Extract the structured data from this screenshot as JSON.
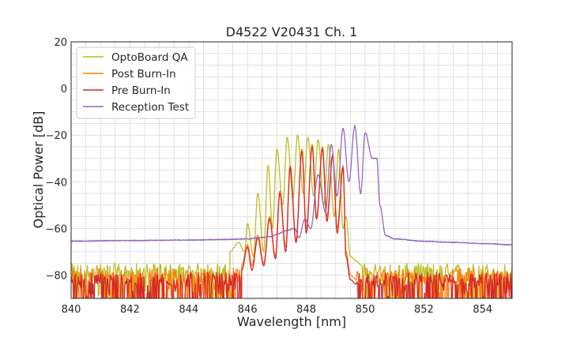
{
  "chart_data": {
    "type": "line",
    "title": "D4522 V20431 Ch. 1",
    "xlabel": "Wavelength [nm]",
    "ylabel": "Optical Power [dB]",
    "xlim": [
      840,
      855
    ],
    "ylim": [
      -90,
      20
    ],
    "xticks": [
      840,
      842,
      844,
      846,
      848,
      850,
      852,
      854
    ],
    "yticks": [
      20,
      0,
      -20,
      -40,
      -60,
      -80
    ],
    "ytick_labels": [
      "20",
      "0",
      "−20",
      "−40",
      "−60",
      "−80"
    ],
    "grid": true,
    "legend_position": "top-left",
    "series": [
      {
        "name": "OptoBoard QA",
        "color": "#bcbd22",
        "noise_floor": -78,
        "x": [
          845.4,
          845.7,
          845.9,
          846.0,
          846.2,
          846.35,
          846.55,
          846.7,
          846.85,
          847.0,
          847.2,
          847.35,
          847.55,
          847.7,
          847.9,
          848.05,
          848.25,
          848.4,
          848.6,
          848.75,
          848.95,
          849.1,
          849.25,
          849.35,
          849.5,
          849.7,
          849.9
        ],
        "values": [
          -70,
          -66,
          -70,
          -58,
          -72,
          -45,
          -70,
          -33,
          -60,
          -26,
          -50,
          -21,
          -47,
          -20,
          -45,
          -21,
          -46,
          -22,
          -50,
          -24,
          -55,
          -26,
          -60,
          -55,
          -72,
          -74,
          -76
        ]
      },
      {
        "name": "Post Burn-In",
        "color": "#ff7f0e",
        "noise_floor": -80,
        "x": [
          845.8,
          846.0,
          846.15,
          846.35,
          846.55,
          846.75,
          846.95,
          847.1,
          847.3,
          847.45,
          847.65,
          847.85,
          848.0,
          848.2,
          848.35,
          848.55,
          848.7,
          848.9,
          849.05,
          849.25,
          849.35,
          849.5,
          849.7
        ],
        "values": [
          -76,
          -67,
          -76,
          -63,
          -75,
          -55,
          -72,
          -44,
          -68,
          -33,
          -65,
          -26,
          -60,
          -24,
          -55,
          -25,
          -55,
          -28,
          -60,
          -33,
          -70,
          -80,
          -82
        ]
      },
      {
        "name": "Pre Burn-In",
        "color": "#d62728",
        "noise_floor": -82,
        "x": [
          845.8,
          846.0,
          846.15,
          846.35,
          846.55,
          846.75,
          846.95,
          847.1,
          847.3,
          847.45,
          847.65,
          847.85,
          848.0,
          848.2,
          848.35,
          848.55,
          848.7,
          848.9,
          849.05,
          849.25,
          849.35,
          849.5,
          849.7
        ],
        "values": [
          -78,
          -68,
          -78,
          -64,
          -76,
          -56,
          -73,
          -45,
          -70,
          -34,
          -66,
          -27,
          -62,
          -25,
          -56,
          -26,
          -57,
          -29,
          -62,
          -34,
          -72,
          -82,
          -84
        ]
      },
      {
        "name": "Reception Test",
        "color": "#9467bd",
        "x": [
          840.0,
          842.0,
          844.0,
          845.0,
          846.0,
          846.4,
          846.8,
          847.0,
          847.3,
          847.6,
          847.75,
          847.95,
          848.15,
          848.4,
          848.65,
          848.85,
          849.05,
          849.25,
          849.45,
          849.65,
          849.85,
          850.0,
          850.25,
          850.4,
          850.5,
          850.7,
          851.0,
          852.0,
          853.0,
          854.0,
          855.0
        ],
        "values": [
          -65.5,
          -65.2,
          -65.0,
          -64.8,
          -64.5,
          -64.0,
          -63.5,
          -62.5,
          -61.0,
          -60.0,
          -64.0,
          -56.0,
          -60.0,
          -37.0,
          -53.0,
          -24.0,
          -46.0,
          -17.0,
          -40.0,
          -16.0,
          -45.0,
          -19.0,
          -30.0,
          -30.0,
          -50.0,
          -63.0,
          -64.5,
          -65.5,
          -66.0,
          -66.5,
          -67.0
        ]
      }
    ]
  }
}
